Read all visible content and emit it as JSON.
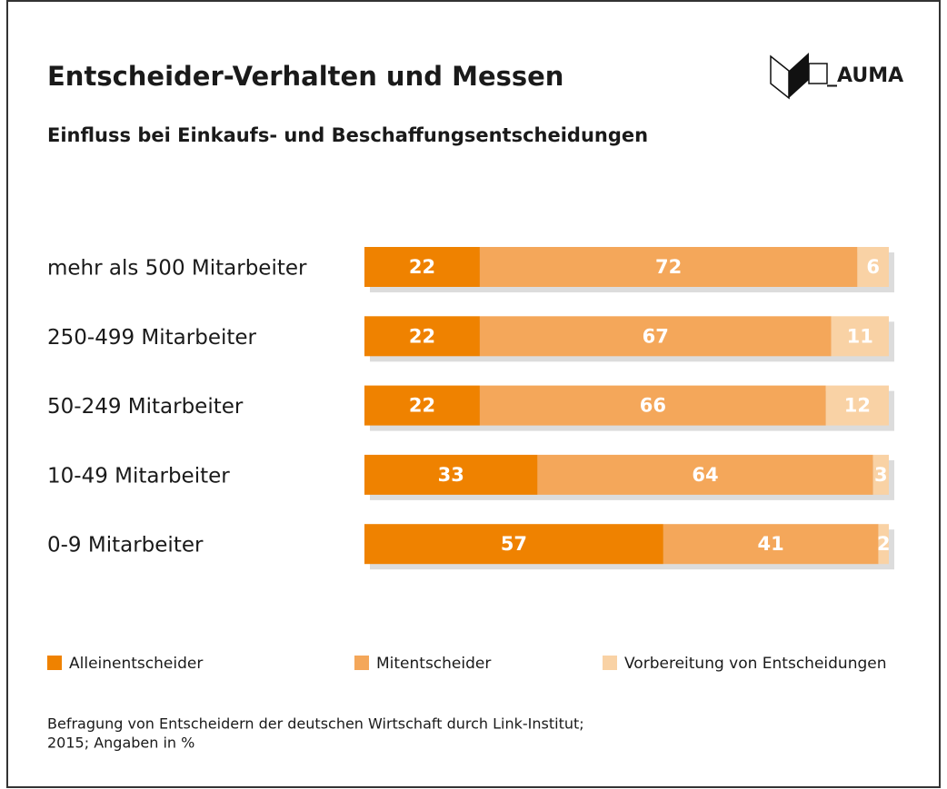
{
  "logo": "_AUMA",
  "chart_data": {
    "type": "stacked-bar-horizontal",
    "title": "Entscheider-Verhalten und Messen",
    "subtitle": "Einfluss bei Einkaufs- und Beschaffungsentscheidungen",
    "categories": [
      "mehr als 500 Mitarbeiter",
      "250-499 Mitarbeiter",
      "50-249 Mitarbeiter",
      "10-49 Mitarbeiter",
      "0-9 Mitarbeiter"
    ],
    "series": [
      {
        "name": "Alleinentscheider",
        "color": "#ef8200",
        "values": [
          22,
          22,
          22,
          33,
          57
        ]
      },
      {
        "name": "Mitentscheider",
        "color": "#f4a75a",
        "values": [
          72,
          67,
          66,
          64,
          41
        ]
      },
      {
        "name": "Vorbereitung von Entscheidungen",
        "color": "#f9d2a5",
        "values": [
          6,
          11,
          12,
          3,
          2
        ]
      }
    ],
    "xlim": [
      0,
      100
    ],
    "note": [
      "Befragung von Entscheidern der deutschen Wirtschaft durch Link-Institut;",
      "2015; Angaben in %"
    ]
  }
}
